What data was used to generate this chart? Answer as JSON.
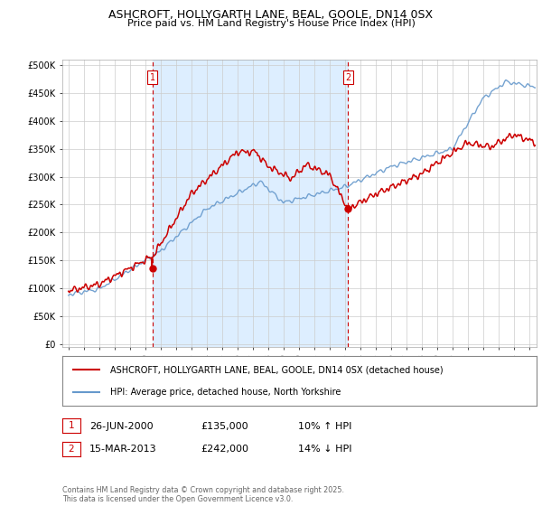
{
  "title": "ASHCROFT, HOLLYGARTH LANE, BEAL, GOOLE, DN14 0SX",
  "subtitle": "Price paid vs. HM Land Registry's House Price Index (HPI)",
  "legend_line1": "ASHCROFT, HOLLYGARTH LANE, BEAL, GOOLE, DN14 0SX (detached house)",
  "legend_line2": "HPI: Average price, detached house, North Yorkshire",
  "marker1_label": "1",
  "marker1_date": "26-JUN-2000",
  "marker1_price": "£135,000",
  "marker1_pct": "10% ↑ HPI",
  "marker2_label": "2",
  "marker2_date": "15-MAR-2013",
  "marker2_price": "£242,000",
  "marker2_pct": "14% ↓ HPI",
  "house_color": "#cc0000",
  "hpi_color": "#6699cc",
  "shade_color": "#ddeeff",
  "vline_color": "#cc0000",
  "background_color": "#ffffff",
  "grid_color": "#cccccc",
  "yticks": [
    0,
    50000,
    100000,
    150000,
    200000,
    250000,
    300000,
    350000,
    400000,
    450000,
    500000
  ],
  "ylim": [
    -5000,
    510000
  ],
  "xlim_start": 1994.6,
  "xlim_end": 2025.5,
  "t1": 2000.458,
  "t2": 2013.208,
  "sale1_price": 135000,
  "sale2_price": 242000,
  "note": "Contains HM Land Registry data © Crown copyright and database right 2025.\nThis data is licensed under the Open Government Licence v3.0."
}
